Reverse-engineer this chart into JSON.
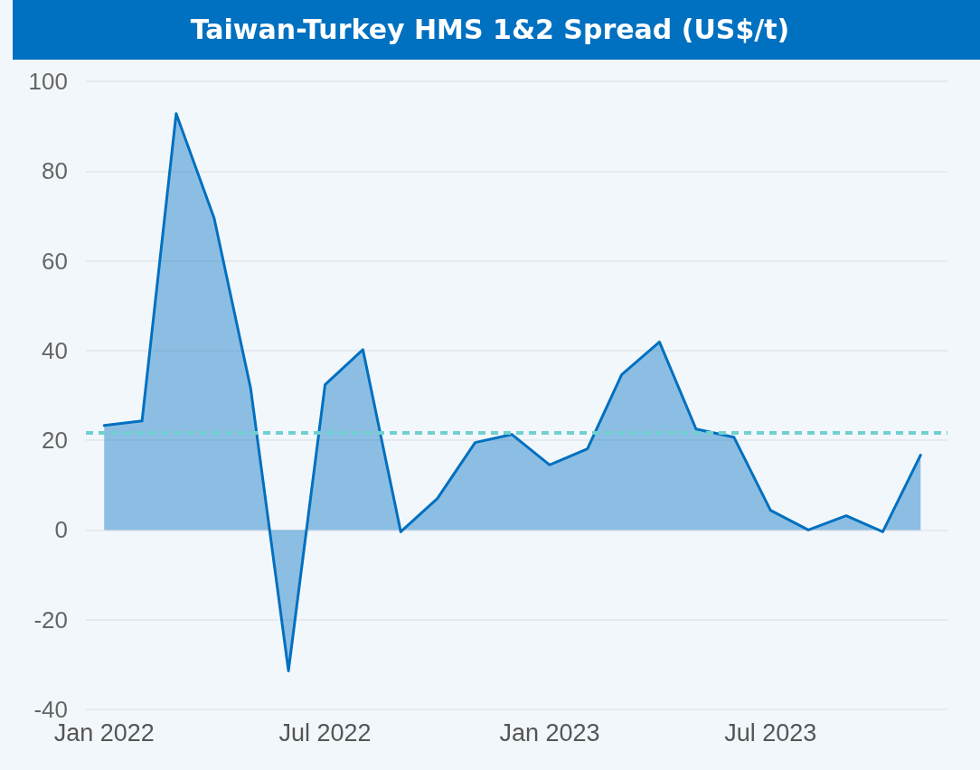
{
  "chart_data": {
    "type": "area",
    "title": "Taiwan-Turkey HMS 1&2 Spread (US$/t)",
    "x": [
      "2022-01",
      "2022-02",
      "2022-03",
      "2022-04",
      "2022-05",
      "2022-06",
      "2022-07",
      "2022-08",
      "2022-09",
      "2022-10",
      "2022-11",
      "2022-12",
      "2023-01",
      "2023-02",
      "2023-03",
      "2023-04",
      "2023-05",
      "2023-06",
      "2023-07",
      "2023-08",
      "2023-09",
      "2023-10",
      "2023-11"
    ],
    "series": [
      {
        "color": "#0070c0",
        "values": [
          23.3,
          24.3,
          92.8,
          69.6,
          31.6,
          -31.4,
          32.4,
          40.2,
          -0.4,
          7,
          19.5,
          21.3,
          14.5,
          18.1,
          34.6,
          41.9,
          22.5,
          20.7,
          4.4,
          0,
          3.2,
          -0.4,
          16.7
        ]
      }
    ],
    "xlim": [
      "2021-12-17",
      "2023-11-23"
    ],
    "xticks": [
      {
        "value": "2022-01",
        "label": "Jan 2022"
      },
      {
        "value": "2022-07",
        "label": "Jul 2022"
      },
      {
        "value": "2023-01",
        "label": "Jan 2023"
      },
      {
        "value": "2023-07",
        "label": "Jul 2023"
      }
    ],
    "ylim": [
      -40,
      100
    ],
    "yticks": [
      -40,
      -20,
      0,
      20,
      40,
      60,
      80,
      100
    ],
    "ref_lines": [
      {
        "axis": "y",
        "value": 21.7,
        "color": "#6fd0d0",
        "line_style": "dashed"
      }
    ],
    "grid": "y",
    "marker": "none",
    "line_style": "solid"
  }
}
